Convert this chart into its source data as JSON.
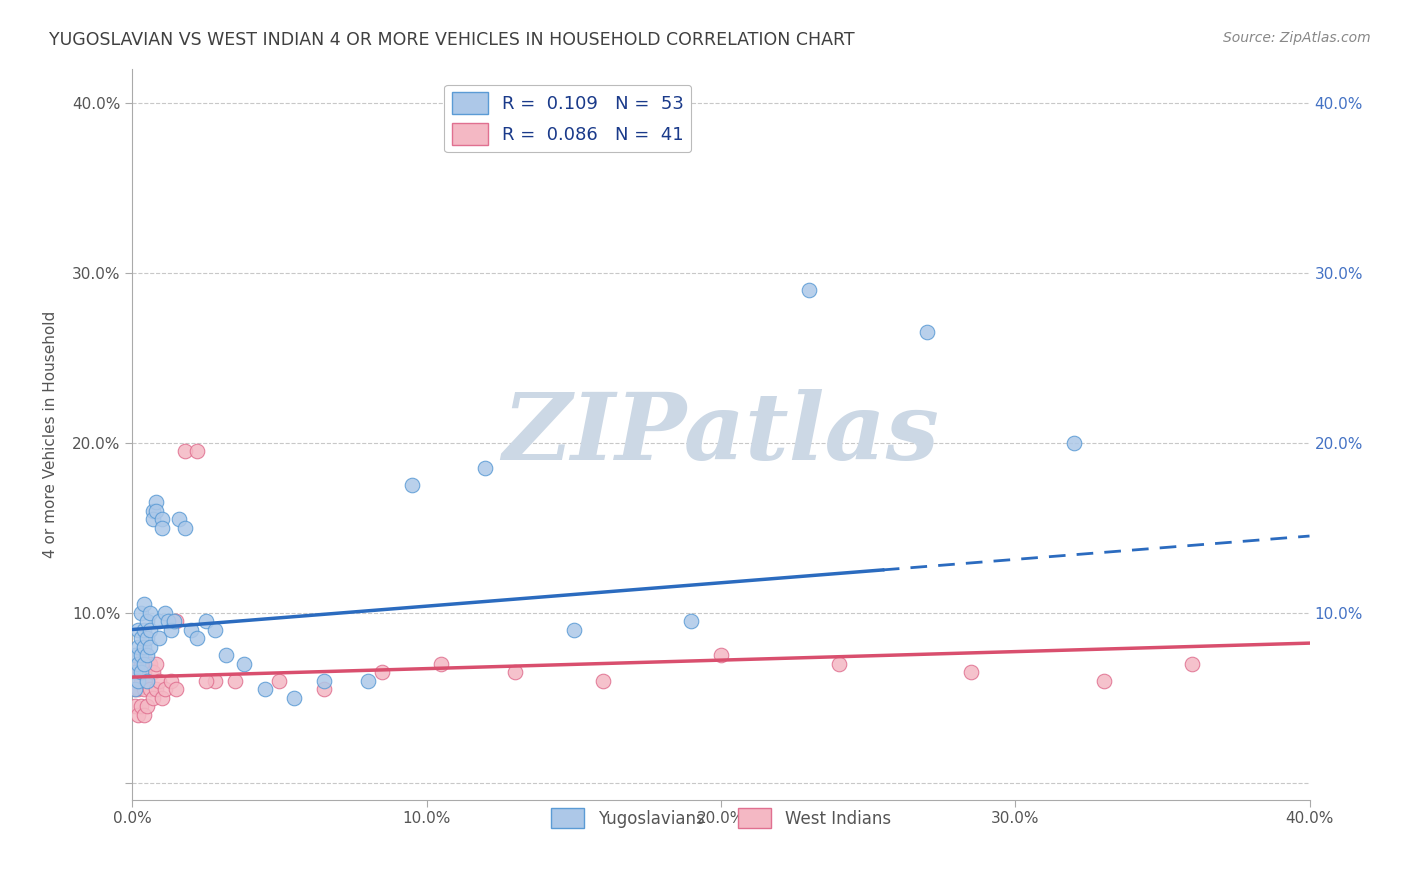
{
  "title": "YUGOSLAVIAN VS WEST INDIAN 4 OR MORE VEHICLES IN HOUSEHOLD CORRELATION CHART",
  "source": "Source: ZipAtlas.com",
  "xlabel": "",
  "ylabel": "4 or more Vehicles in Household",
  "xlim": [
    0.0,
    0.4
  ],
  "ylim": [
    -0.01,
    0.42
  ],
  "xticks": [
    0.0,
    0.1,
    0.2,
    0.3,
    0.4
  ],
  "yticks": [
    0.0,
    0.1,
    0.2,
    0.3,
    0.4
  ],
  "xticklabels": [
    "0.0%",
    "10.0%",
    "20.0%",
    "30.0%",
    "40.0%"
  ],
  "yticklabels": [
    "",
    "10.0%",
    "20.0%",
    "30.0%",
    "40.0%"
  ],
  "right_yticklabels": [
    "10.0%",
    "20.0%",
    "30.0%",
    "40.0%"
  ],
  "series1_label": "Yugoslavians",
  "series2_label": "West Indians",
  "series1_color": "#adc8e8",
  "series1_edge": "#5b9bd5",
  "series2_color": "#f4b8c4",
  "series2_edge": "#e07090",
  "trendline1_color": "#2b6bbf",
  "trendline2_color": "#d94f6e",
  "background_color": "#ffffff",
  "watermark_text": "ZIPatlas",
  "watermark_color": "#ccd8e5",
  "grid_color": "#c8c8c8",
  "title_color": "#404040",
  "axis_color": "#555555",
  "R1": 0.109,
  "N1": 53,
  "R2": 0.086,
  "N2": 41,
  "trendline1_x0": 0.0,
  "trendline1_y0": 0.09,
  "trendline1_x1": 0.4,
  "trendline1_y1": 0.145,
  "trendline1_solid_end": 0.255,
  "trendline2_x0": 0.0,
  "trendline2_y0": 0.062,
  "trendline2_x1": 0.4,
  "trendline2_y1": 0.082,
  "yug_x": [
    0.001,
    0.001,
    0.001,
    0.002,
    0.002,
    0.002,
    0.002,
    0.003,
    0.003,
    0.003,
    0.003,
    0.004,
    0.004,
    0.004,
    0.004,
    0.005,
    0.005,
    0.005,
    0.005,
    0.006,
    0.006,
    0.006,
    0.007,
    0.007,
    0.008,
    0.008,
    0.009,
    0.009,
    0.01,
    0.01,
    0.011,
    0.012,
    0.013,
    0.014,
    0.016,
    0.018,
    0.02,
    0.022,
    0.025,
    0.028,
    0.032,
    0.038,
    0.045,
    0.055,
    0.065,
    0.08,
    0.095,
    0.12,
    0.15,
    0.19,
    0.23,
    0.27,
    0.32
  ],
  "yug_y": [
    0.075,
    0.065,
    0.055,
    0.09,
    0.08,
    0.07,
    0.06,
    0.1,
    0.085,
    0.075,
    0.065,
    0.105,
    0.09,
    0.08,
    0.07,
    0.095,
    0.085,
    0.075,
    0.06,
    0.1,
    0.09,
    0.08,
    0.16,
    0.155,
    0.165,
    0.16,
    0.095,
    0.085,
    0.155,
    0.15,
    0.1,
    0.095,
    0.09,
    0.095,
    0.155,
    0.15,
    0.09,
    0.085,
    0.095,
    0.09,
    0.075,
    0.07,
    0.055,
    0.05,
    0.06,
    0.06,
    0.175,
    0.185,
    0.09,
    0.095,
    0.29,
    0.265,
    0.2
  ],
  "wi_x": [
    0.001,
    0.001,
    0.002,
    0.002,
    0.002,
    0.003,
    0.003,
    0.003,
    0.004,
    0.004,
    0.004,
    0.005,
    0.005,
    0.006,
    0.006,
    0.007,
    0.007,
    0.008,
    0.008,
    0.009,
    0.01,
    0.011,
    0.013,
    0.015,
    0.018,
    0.022,
    0.028,
    0.035,
    0.05,
    0.065,
    0.085,
    0.105,
    0.13,
    0.16,
    0.2,
    0.24,
    0.285,
    0.33,
    0.36,
    0.015,
    0.025
  ],
  "wi_y": [
    0.055,
    0.045,
    0.065,
    0.055,
    0.04,
    0.07,
    0.06,
    0.045,
    0.065,
    0.055,
    0.04,
    0.06,
    0.045,
    0.07,
    0.055,
    0.065,
    0.05,
    0.07,
    0.055,
    0.06,
    0.05,
    0.055,
    0.06,
    0.055,
    0.195,
    0.195,
    0.06,
    0.06,
    0.06,
    0.055,
    0.065,
    0.07,
    0.065,
    0.06,
    0.075,
    0.07,
    0.065,
    0.06,
    0.07,
    0.095,
    0.06
  ]
}
